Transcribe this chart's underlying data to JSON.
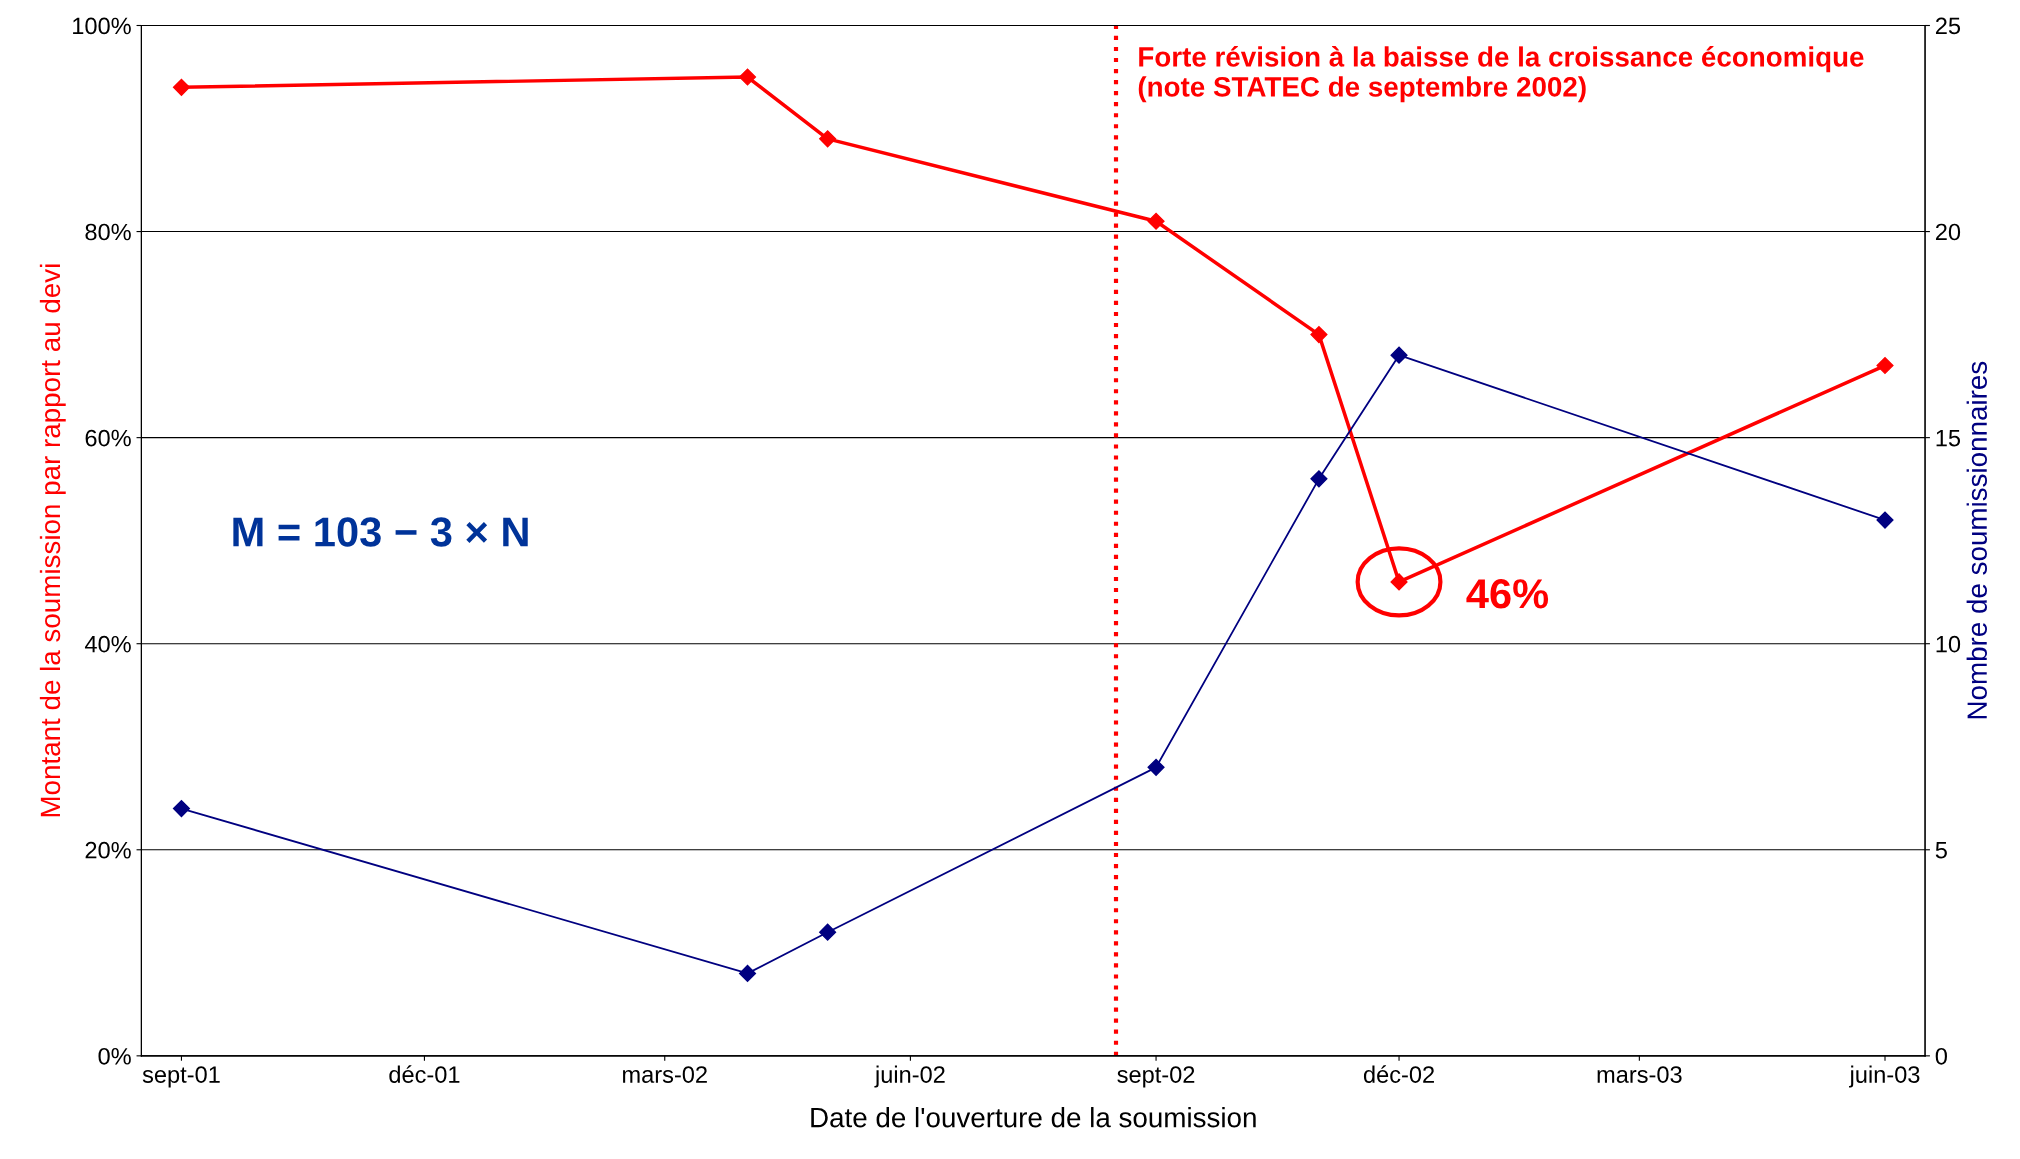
{
  "chart_data": {
    "type": "line",
    "xlabel": "Date de l'ouverture de la soumission",
    "ylabel": "Montant de la soumission par rapport au devi",
    "y2label": "Nombre de soumissionnaires",
    "x": [
      "2001-09-01",
      "2002-04-01",
      "2002-05-01",
      "2002-09-01",
      "2002-11-01",
      "2002-12-01",
      "2003-06-01"
    ],
    "series": [
      {
        "color": "#ff0000",
        "values": [
          94,
          95,
          89,
          81,
          70,
          46,
          67
        ]
      },
      {
        "color": "#000080",
        "axis": "y2",
        "values": [
          6,
          2,
          3,
          7,
          14,
          17,
          13
        ]
      }
    ],
    "xlim": [
      "2001-08-17",
      "2003-06-16"
    ],
    "xticks": [
      {
        "value": "2001-09-01",
        "label": "sept-01"
      },
      {
        "value": "2001-12-01",
        "label": "déc-01"
      },
      {
        "value": "2002-03-01",
        "label": "mars-02"
      },
      {
        "value": "2002-06-01",
        "label": "juin-02"
      },
      {
        "value": "2002-09-01",
        "label": "sept-02"
      },
      {
        "value": "2002-12-01",
        "label": "déc-02"
      },
      {
        "value": "2003-03-01",
        "label": "mars-03"
      },
      {
        "value": "2003-06-01",
        "label": "juin-03"
      }
    ],
    "ylim": [
      0,
      100
    ],
    "yticks": [
      {
        "value": 0,
        "label": "0%"
      },
      {
        "value": 20,
        "label": "20%"
      },
      {
        "value": 40,
        "label": "40%"
      },
      {
        "value": 60,
        "label": "60%"
      },
      {
        "value": 80,
        "label": "80%"
      },
      {
        "value": 100,
        "label": "100%"
      }
    ],
    "y2lim": [
      0,
      25
    ],
    "y2ticks": [
      0,
      5,
      10,
      15,
      20,
      25
    ],
    "grid": "y",
    "marker": "diamond",
    "line_style": "solid",
    "legend": false,
    "ref_lines": [
      {
        "axis": "x",
        "value": "2002-08-17",
        "label": "Forte révision à la baisse de la croissance économique\n(note STATEC de septembre 2002)",
        "color": "#ff0000",
        "line_style": "dotted"
      }
    ],
    "annotations": [
      "M = 103 − 3 × N",
      {
        "text": "46%",
        "x": "2002-12-01",
        "y": 46
      }
    ]
  }
}
